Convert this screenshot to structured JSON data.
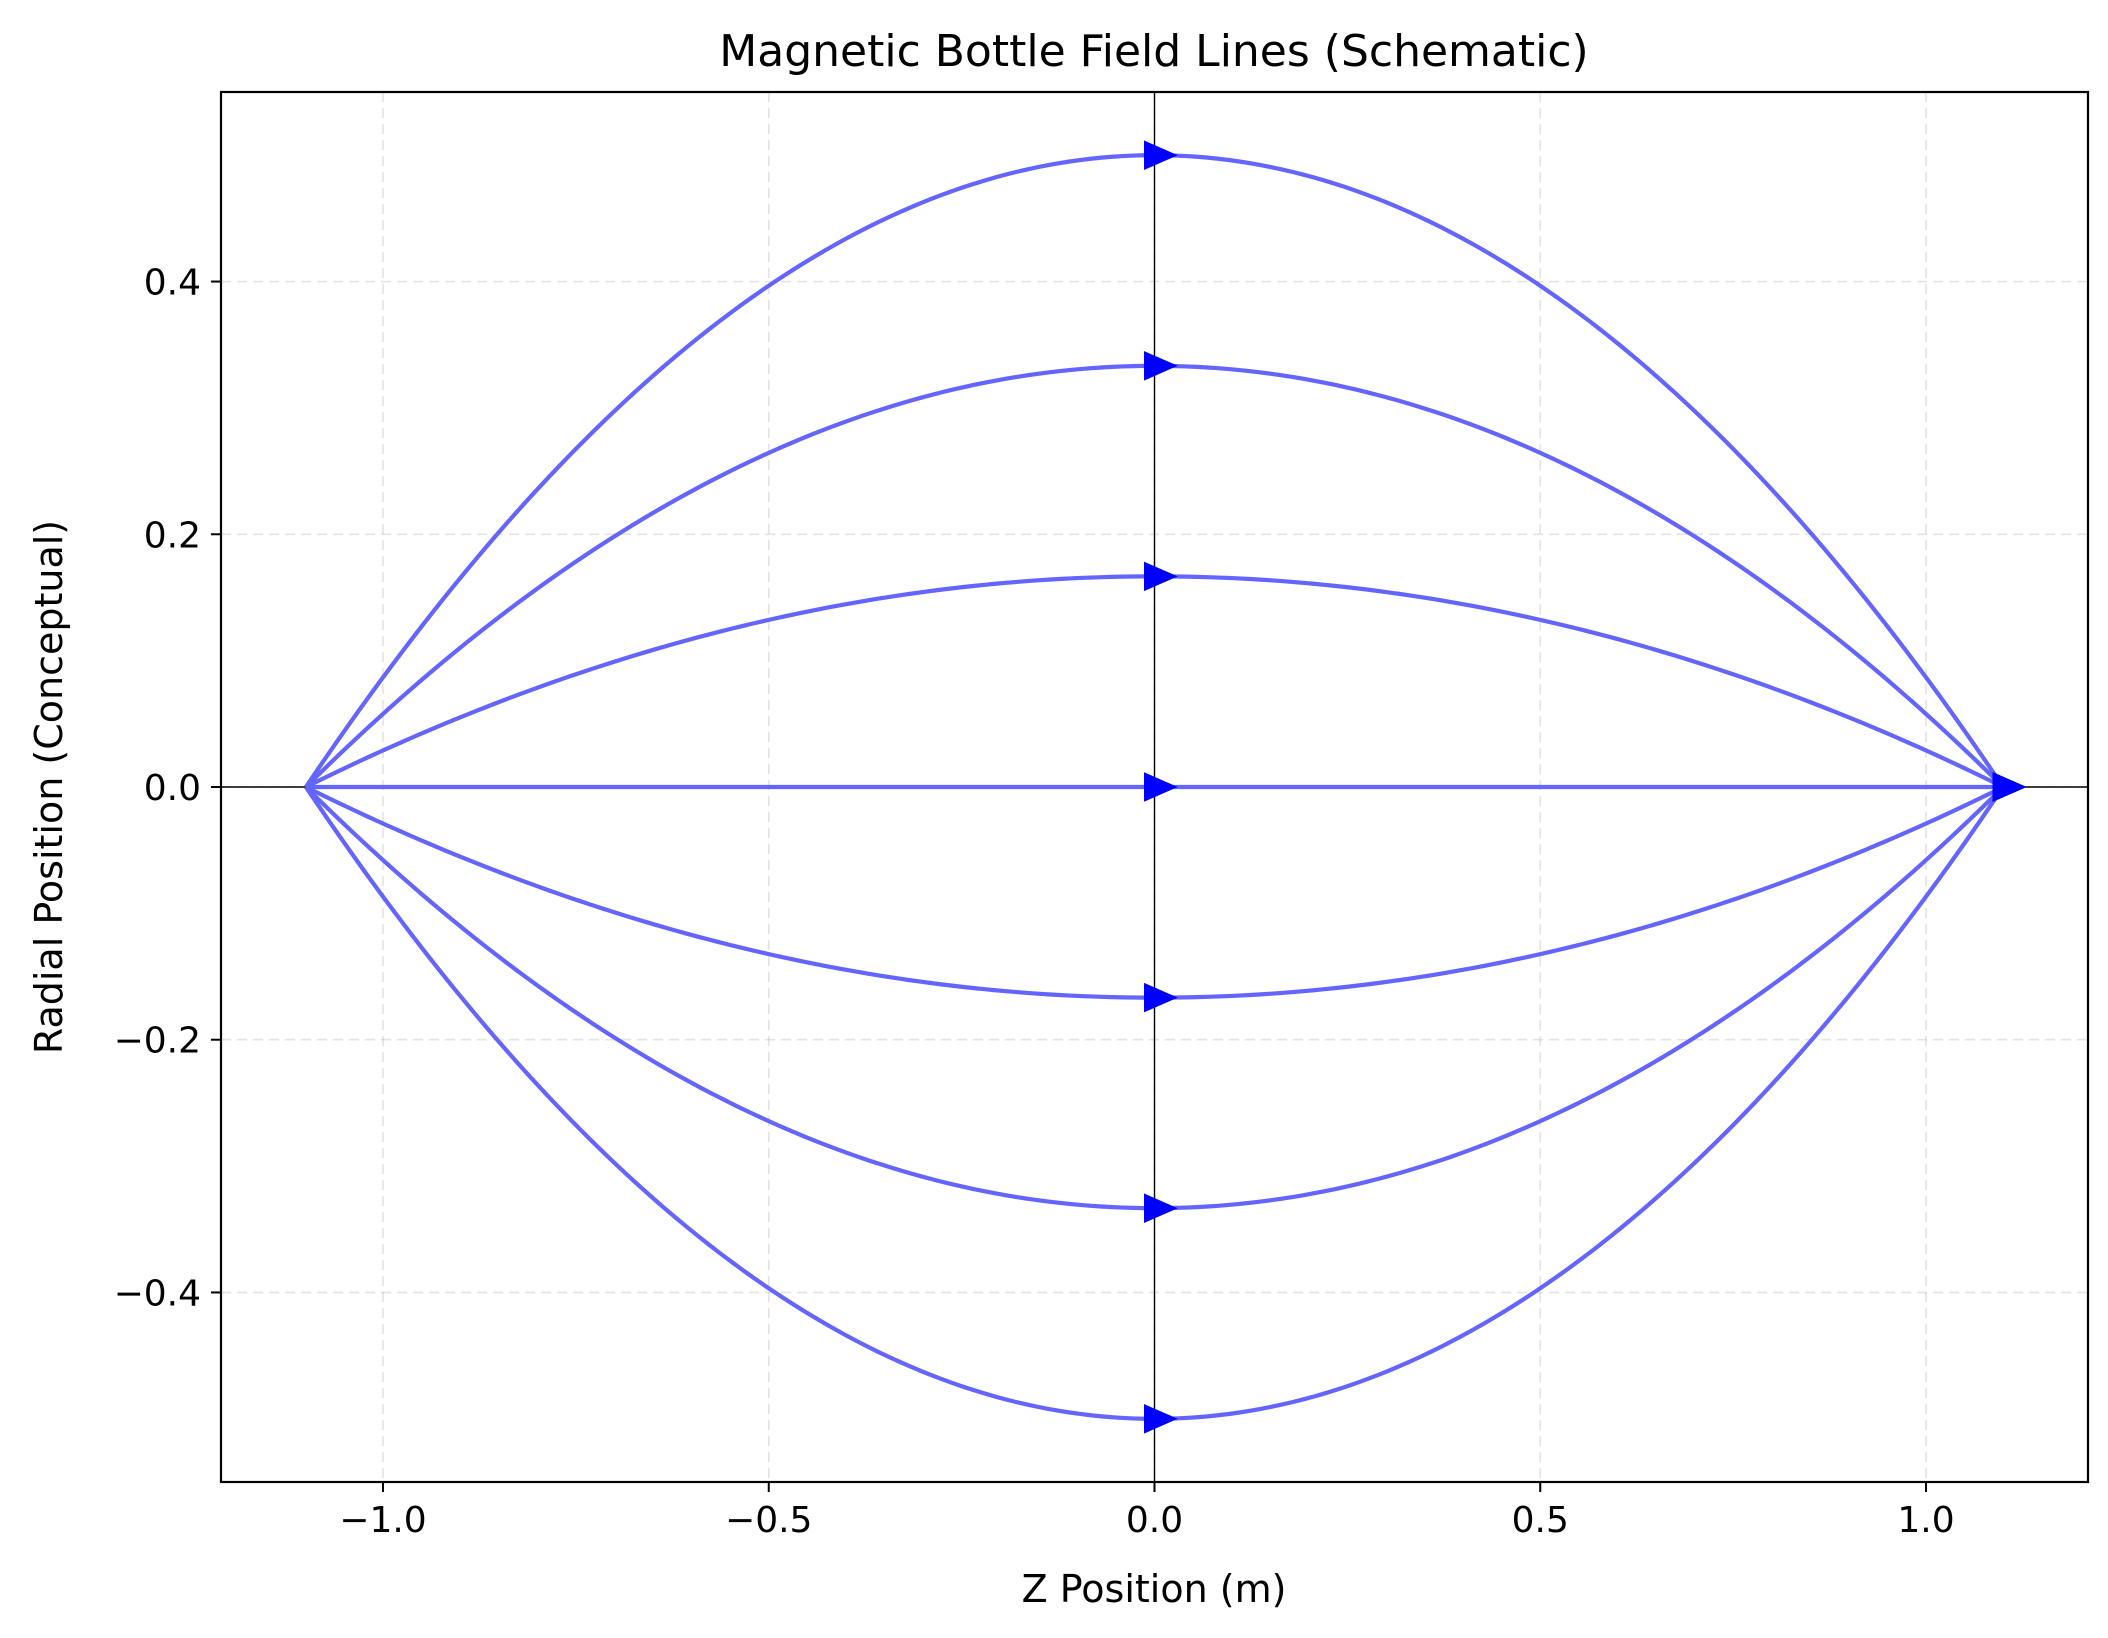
{
  "chart_data": {
    "type": "line",
    "title": "Magnetic Bottle Field Lines (Schematic)",
    "xlabel": "Z Position (m)",
    "ylabel": "Radial Position (Conceptual)",
    "xlim": [
      -1.21,
      1.21
    ],
    "ylim": [
      -0.55,
      0.55
    ],
    "xticks": [
      -1.0,
      -0.5,
      0.0,
      0.5,
      1.0
    ],
    "xtick_labels": [
      "−1.0",
      "−0.5",
      "0.0",
      "0.5",
      "1.0"
    ],
    "yticks": [
      -0.4,
      -0.2,
      0.0,
      0.2,
      0.4
    ],
    "ytick_labels": [
      "−0.4",
      "−0.2",
      "0.0",
      "0.2",
      "0.4"
    ],
    "grid": true,
    "grid_style": "dashed",
    "reference_lines": {
      "x": 0.0,
      "y": 0.0
    },
    "z_range": [
      -1.1,
      1.1
    ],
    "curve_shape": "parabolic: r(z) = r0 * (1 - (z/1.1)^2), pinched toward the axis at both ends",
    "series": [
      {
        "r0": 0.5
      },
      {
        "r0": 0.3333
      },
      {
        "r0": 0.1667
      },
      {
        "r0": 0.0
      },
      {
        "r0": -0.1667
      },
      {
        "r0": -0.3333
      },
      {
        "r0": -0.5
      }
    ],
    "arrow_positions_z": [
      0.0,
      1.1
    ],
    "arrow_direction": "+z",
    "line_color": "#6464ff",
    "arrow_color": "#0000ff",
    "reference_line_color": "#000000"
  }
}
